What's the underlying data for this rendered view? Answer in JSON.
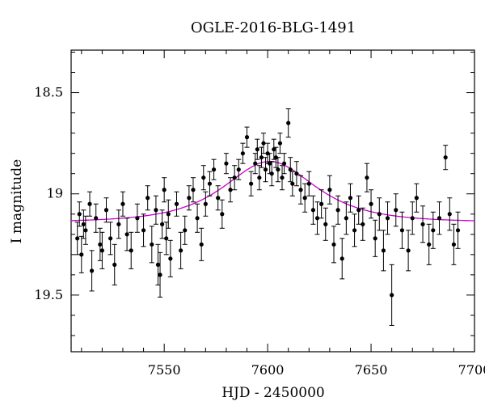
{
  "chart_data": {
    "type": "scatter",
    "title": "OGLE-2016-BLG-1491",
    "xlabel": "HJD - 2450000",
    "ylabel": "I magnitude",
    "xlim": [
      7505,
      7700
    ],
    "ylim": [
      19.78,
      18.29
    ],
    "y_inverted": true,
    "xticks": [
      7550,
      7600,
      7650,
      7700
    ],
    "yticks": [
      18.5,
      19,
      19.5
    ],
    "xtick_labels": [
      "7550",
      "7600",
      "7650",
      "7700"
    ],
    "ytick_labels": [
      "18.5",
      "19",
      "19.5"
    ],
    "grid": false,
    "colors": {
      "points": "#000000",
      "model": "#cc00cc"
    },
    "model_curve": {
      "name": "",
      "baseline_mag": 19.14,
      "peak_mag": 18.84,
      "t0": 7601,
      "tE": 26,
      "color": "#cc00cc"
    },
    "series": [
      {
        "name": "",
        "x": [
          7508,
          7509,
          7510,
          7511,
          7512,
          7514,
          7515,
          7517,
          7519,
          7520,
          7522,
          7524,
          7526,
          7528,
          7530,
          7532,
          7534,
          7537,
          7540,
          7542,
          7544,
          7546,
          7547,
          7548,
          7549,
          7550,
          7551,
          7552,
          7553,
          7556,
          7558,
          7560,
          7562,
          7564,
          7566,
          7568,
          7569,
          7570,
          7572,
          7574,
          7576,
          7578,
          7580,
          7582,
          7584,
          7586,
          7588,
          7590,
          7592,
          7594,
          7595,
          7596,
          7597,
          7598,
          7599,
          7600,
          7601,
          7602,
          7603,
          7604,
          7605,
          7606,
          7607,
          7608,
          7610,
          7611,
          7612,
          7614,
          7616,
          7618,
          7620,
          7622,
          7624,
          7626,
          7628,
          7630,
          7632,
          7634,
          7636,
          7638,
          7640,
          7642,
          7644,
          7646,
          7648,
          7650,
          7652,
          7654,
          7656,
          7658,
          7660,
          7662,
          7665,
          7668,
          7670,
          7672,
          7675,
          7678,
          7680,
          7683,
          7686,
          7688,
          7690,
          7692
        ],
        "y": [
          19.22,
          19.1,
          19.3,
          19.15,
          19.18,
          19.05,
          19.38,
          19.12,
          19.25,
          19.28,
          19.08,
          19.22,
          19.35,
          19.15,
          19.05,
          19.2,
          19.28,
          19.12,
          19.18,
          19.02,
          19.25,
          19.08,
          19.35,
          19.4,
          19.15,
          18.98,
          19.22,
          19.1,
          19.32,
          19.05,
          19.28,
          19.18,
          19.02,
          18.98,
          19.12,
          19.25,
          18.92,
          19.05,
          18.95,
          18.88,
          19.02,
          19.1,
          18.85,
          18.98,
          18.92,
          18.88,
          18.8,
          18.72,
          18.95,
          18.85,
          18.78,
          18.92,
          18.82,
          18.75,
          18.88,
          18.8,
          18.85,
          18.9,
          18.78,
          18.82,
          18.88,
          18.75,
          18.92,
          18.85,
          18.65,
          18.88,
          18.95,
          18.9,
          18.98,
          19.02,
          18.95,
          19.08,
          19.12,
          19.05,
          19.15,
          18.98,
          19.25,
          19.08,
          19.32,
          19.12,
          19.02,
          19.18,
          19.08,
          19.15,
          18.92,
          19.05,
          19.22,
          19.1,
          19.28,
          19.12,
          19.5,
          19.08,
          19.18,
          19.28,
          19.12,
          19.02,
          19.15,
          19.25,
          19.18,
          19.12,
          18.82,
          19.1,
          19.25,
          19.18
        ],
        "yerr": [
          0.08,
          0.06,
          0.09,
          0.07,
          0.07,
          0.06,
          0.1,
          0.07,
          0.08,
          0.09,
          0.06,
          0.08,
          0.1,
          0.07,
          0.06,
          0.08,
          0.09,
          0.07,
          0.08,
          0.06,
          0.09,
          0.07,
          0.1,
          0.11,
          0.07,
          0.06,
          0.08,
          0.07,
          0.09,
          0.06,
          0.09,
          0.07,
          0.06,
          0.06,
          0.07,
          0.08,
          0.06,
          0.06,
          0.06,
          0.05,
          0.06,
          0.07,
          0.05,
          0.06,
          0.06,
          0.05,
          0.05,
          0.05,
          0.06,
          0.05,
          0.05,
          0.06,
          0.05,
          0.05,
          0.06,
          0.05,
          0.05,
          0.06,
          0.05,
          0.05,
          0.06,
          0.05,
          0.06,
          0.05,
          0.07,
          0.06,
          0.06,
          0.06,
          0.07,
          0.07,
          0.06,
          0.07,
          0.08,
          0.07,
          0.08,
          0.07,
          0.09,
          0.07,
          0.1,
          0.08,
          0.07,
          0.08,
          0.07,
          0.08,
          0.07,
          0.07,
          0.09,
          0.08,
          0.1,
          0.08,
          0.15,
          0.08,
          0.09,
          0.1,
          0.08,
          0.07,
          0.09,
          0.1,
          0.09,
          0.08,
          0.06,
          0.08,
          0.1,
          0.09
        ]
      }
    ]
  }
}
